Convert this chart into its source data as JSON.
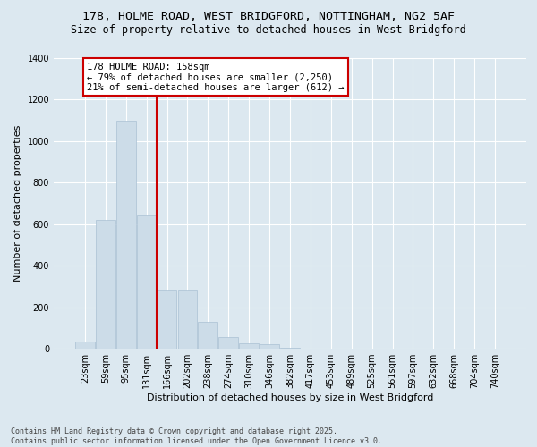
{
  "title_line1": "178, HOLME ROAD, WEST BRIDGFORD, NOTTINGHAM, NG2 5AF",
  "title_line2": "Size of property relative to detached houses in West Bridgford",
  "xlabel": "Distribution of detached houses by size in West Bridgford",
  "ylabel": "Number of detached properties",
  "categories": [
    "23sqm",
    "59sqm",
    "95sqm",
    "131sqm",
    "166sqm",
    "202sqm",
    "238sqm",
    "274sqm",
    "310sqm",
    "346sqm",
    "382sqm",
    "417sqm",
    "453sqm",
    "489sqm",
    "525sqm",
    "561sqm",
    "597sqm",
    "632sqm",
    "668sqm",
    "704sqm",
    "740sqm"
  ],
  "values": [
    35,
    620,
    1100,
    640,
    285,
    285,
    130,
    55,
    25,
    20,
    5,
    0,
    0,
    0,
    0,
    0,
    0,
    0,
    0,
    0,
    0
  ],
  "bar_color": "#ccdce8",
  "bar_edge_color": "#aac0d4",
  "vline_color": "#cc0000",
  "annotation_text": "178 HOLME ROAD: 158sqm\n← 79% of detached houses are smaller (2,250)\n21% of semi-detached houses are larger (612) →",
  "annotation_box_color": "#cc0000",
  "ylim": [
    0,
    1400
  ],
  "yticks": [
    0,
    200,
    400,
    600,
    800,
    1000,
    1200,
    1400
  ],
  "bg_color": "#dce8f0",
  "plot_bg_color": "#dce8f0",
  "footer_line1": "Contains HM Land Registry data © Crown copyright and database right 2025.",
  "footer_line2": "Contains public sector information licensed under the Open Government Licence v3.0.",
  "title_fontsize": 9.5,
  "subtitle_fontsize": 8.5,
  "axis_label_fontsize": 8,
  "tick_fontsize": 7,
  "annotation_fontsize": 7.5,
  "footer_fontsize": 6
}
